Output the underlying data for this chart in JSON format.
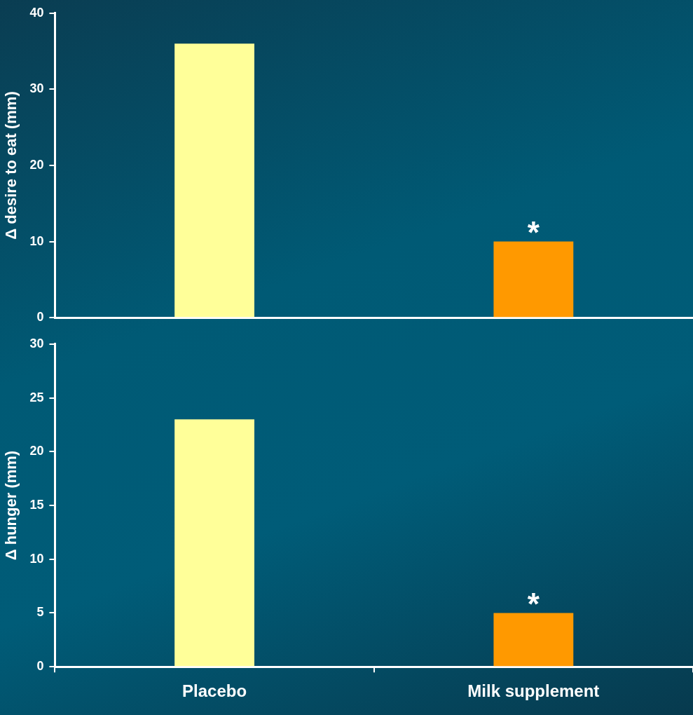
{
  "chart_data": [
    {
      "type": "bar",
      "ylabel": "Δ desire to eat (mm)",
      "categories": [
        "Placebo",
        "Milk supplement"
      ],
      "values": [
        36,
        10
      ],
      "colors": [
        "#ffff99",
        "#ff9900"
      ],
      "ylim": [
        0,
        40
      ],
      "yticks": [
        0,
        10,
        20,
        30,
        40
      ],
      "grid": false,
      "tick_labels": "y",
      "annotations": [
        {
          "text": "*",
          "x": "Milk supplement",
          "y": 10
        }
      ]
    },
    {
      "type": "bar",
      "ylabel": "Δ hunger (mm)",
      "categories": [
        "Placebo",
        "Milk supplement"
      ],
      "values": [
        23,
        5
      ],
      "colors": [
        "#ffff99",
        "#ff9900"
      ],
      "ylim": [
        0,
        30
      ],
      "yticks": [
        0,
        5,
        10,
        15,
        20,
        25,
        30
      ],
      "grid": false,
      "annotations": [
        {
          "text": "*",
          "x": "Milk supplement",
          "y": 5
        }
      ]
    }
  ]
}
